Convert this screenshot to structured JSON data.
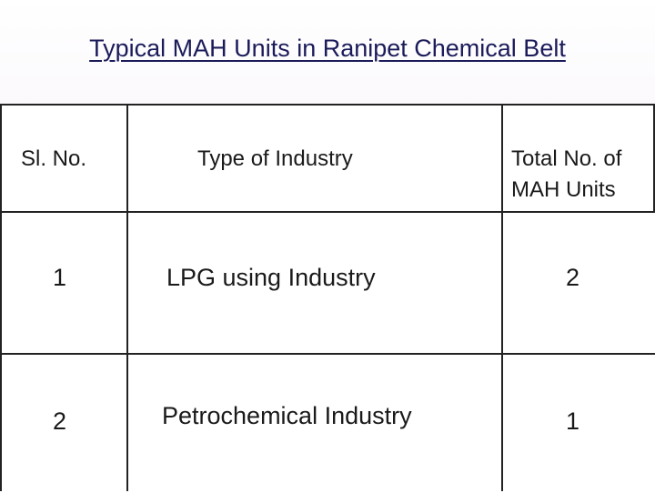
{
  "title": "Typical MAH Units in Ranipet Chemical Belt",
  "table": {
    "headers": {
      "sl_no": "Sl. No.",
      "type": "Type of Industry",
      "total_line1": "Total No. of",
      "total_line2": "MAH Units"
    },
    "rows": [
      {
        "sl_no": "1",
        "type": "LPG using Industry",
        "total": "2"
      },
      {
        "sl_no": "2",
        "type": "Petrochemical Industry",
        "total": "1"
      }
    ]
  }
}
